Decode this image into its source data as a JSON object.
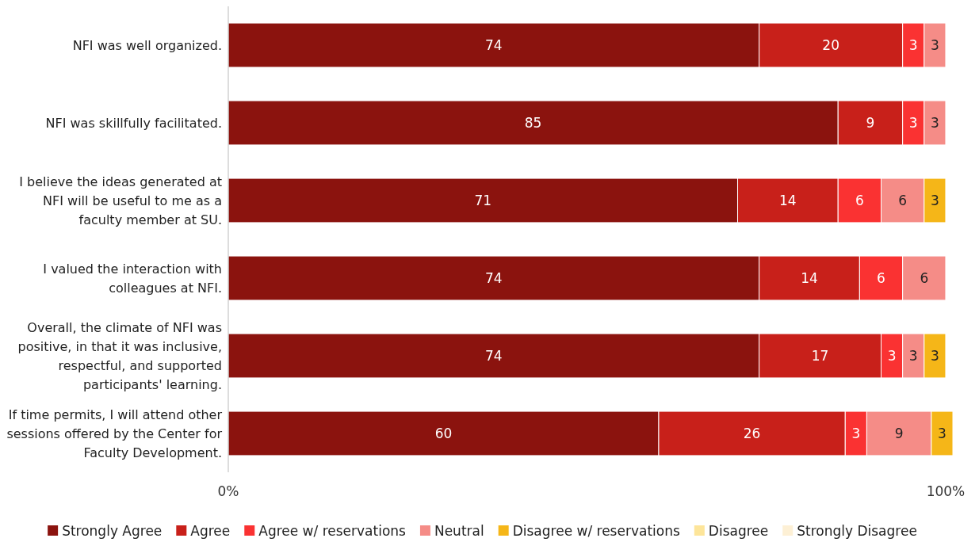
{
  "chart_data": {
    "type": "bar",
    "orientation": "horizontal",
    "stacked": true,
    "categories": [
      "NFI was well organized.",
      "NFI was skillfully facilitated.",
      "I believe the ideas generated at NFI will be useful to me as a faculty member at SU.",
      "I valued the interaction with colleagues at NFI.",
      "Overall, the climate of NFI was positive, in that it was inclusive, respectful, and supported participants' learning.",
      "If time permits, I will attend other sessions offered by the Center for Faculty Development."
    ],
    "series": [
      {
        "name": "Strongly Agree",
        "color": "#8b130e",
        "values": [
          74,
          85,
          71,
          74,
          74,
          60
        ]
      },
      {
        "name": "Agree",
        "color": "#c8201a",
        "values": [
          20,
          9,
          14,
          14,
          17,
          26
        ]
      },
      {
        "name": "Agree w/ reservations",
        "color": "#fa3232",
        "values": [
          3,
          3,
          6,
          6,
          3,
          3
        ]
      },
      {
        "name": "Neutral",
        "color": "#f58c87",
        "values": [
          3,
          3,
          6,
          6,
          3,
          9
        ]
      },
      {
        "name": "Disagree w/ reservations",
        "color": "#f5b618",
        "values": [
          null,
          null,
          3,
          null,
          3,
          3
        ]
      },
      {
        "name": "Disagree",
        "color": "#fde59a",
        "values": [
          null,
          null,
          null,
          null,
          null,
          null
        ]
      },
      {
        "name": "Strongly Disagree",
        "color": "#fdf0d5",
        "values": [
          null,
          null,
          null,
          null,
          null,
          null
        ]
      }
    ],
    "xlim": [
      0,
      101
    ],
    "xticks": [
      {
        "value": 0,
        "label": "0%"
      },
      {
        "value": 100,
        "label": "100%"
      }
    ],
    "data_labels": true,
    "legend": "bottom"
  }
}
